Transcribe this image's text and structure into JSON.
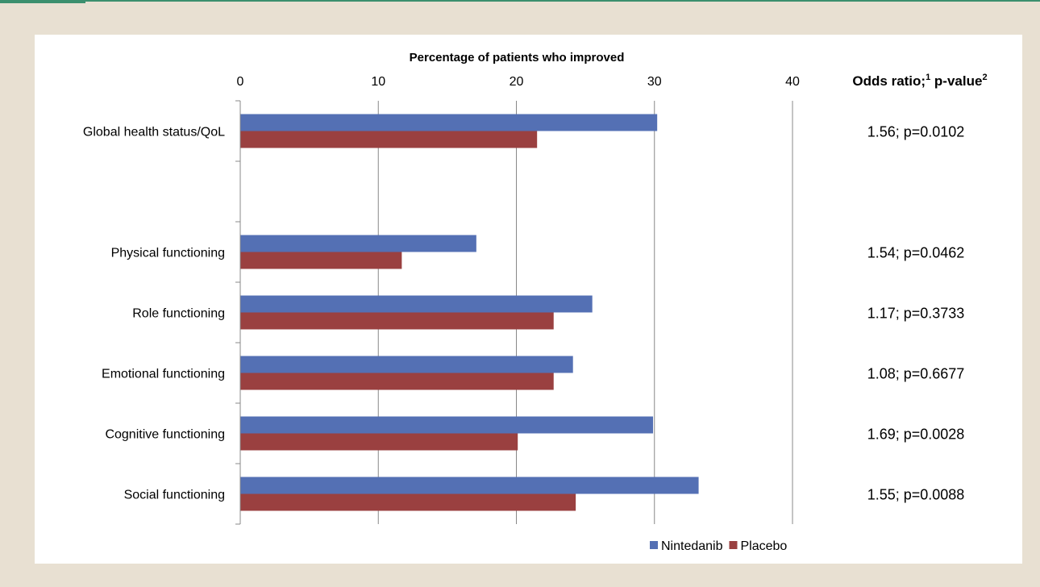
{
  "chart_data": {
    "type": "bar",
    "orientation": "horizontal",
    "title": "Percentage of patients who improved",
    "xlim": [
      0,
      40
    ],
    "xticks": [
      0,
      10,
      20,
      30,
      40
    ],
    "grid": true,
    "legend_placement": "bottom-right",
    "categories": [
      "Global health status/QoL",
      "",
      "Physical functioning",
      "Role functioning",
      "Emotional functioning",
      "Cognitive functioning",
      "Social functioning"
    ],
    "series": [
      {
        "name": "Nintedanib",
        "color": "#5470b4",
        "values": [
          30.2,
          null,
          17.1,
          25.5,
          24.1,
          29.9,
          33.2
        ]
      },
      {
        "name": "Placebo",
        "color": "#9a4040",
        "values": [
          21.5,
          null,
          11.7,
          22.7,
          22.7,
          20.1,
          24.3
        ]
      }
    ],
    "annotation_header": {
      "text": "Odds ratio;",
      "sup1": "1",
      "text2": " p-value",
      "sup2": "2"
    },
    "annotations": [
      "1.56; p=0.0102",
      "",
      "1.54; p=0.0462",
      "1.17; p=0.3733",
      "1.08; p=0.6677",
      "1.69; p=0.0028",
      "1.55; p=0.0088"
    ]
  }
}
